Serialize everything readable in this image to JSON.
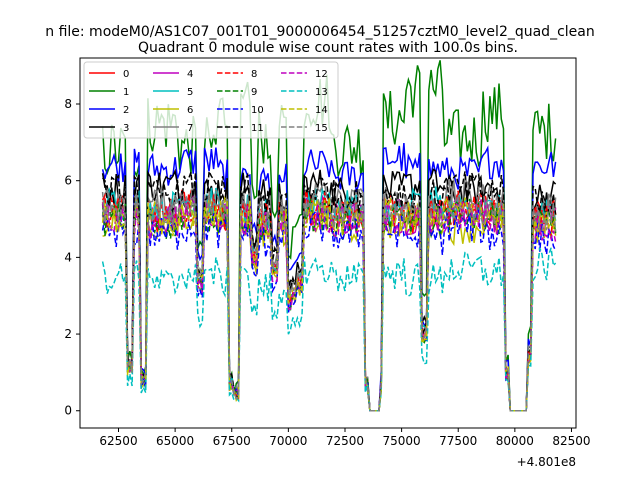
{
  "chart_data": {
    "type": "line",
    "suptitle": "n file: modeM0/AS1C07_001T01_9000006454_51257cztM0_level2_quad_clean",
    "title": "Quadrant 0 module wise count rates with 100.0s bins.",
    "xlabel": "",
    "ylabel": "",
    "x_offset_label": "+4.801e8",
    "xlim": [
      60800,
      82700
    ],
    "ylim": [
      -0.45,
      9.2
    ],
    "x_ticks": [
      62500,
      65000,
      67500,
      70000,
      72500,
      75000,
      77500,
      80000,
      82500
    ],
    "x_tick_labels": [
      "62500",
      "65000",
      "67500",
      "70000",
      "72500",
      "75000",
      "77500",
      "80000",
      "82500"
    ],
    "y_ticks": [
      0,
      2,
      4,
      6,
      8
    ],
    "y_tick_labels": [
      "0",
      "2",
      "4",
      "6",
      "8"
    ],
    "grid": false,
    "legend_position": "top-left",
    "x_start": 61800,
    "x_step": 100,
    "gaps": [
      [
        73600,
        74000
      ],
      [
        79800,
        80500
      ]
    ],
    "series": [
      {
        "name": "0",
        "color": "#ff0000",
        "dash": "solid",
        "values": [
          5.3,
          5.1,
          5.4,
          5.2,
          5.0,
          5.3,
          5.1,
          5.2,
          5.0,
          5.3,
          5.2,
          5.1
        ]
      },
      {
        "name": "1",
        "color": "#008000",
        "dash": "solid",
        "values": [
          6.8,
          7.5,
          6.9,
          7.8,
          7.2,
          8.1,
          6.9,
          7.6,
          8.4,
          7.1,
          7.8,
          7.3
        ]
      },
      {
        "name": "2",
        "color": "#0000ff",
        "dash": "solid",
        "values": [
          6.4,
          6.3,
          6.5,
          6.2,
          6.0,
          6.4,
          6.1,
          6.6,
          6.3,
          6.2,
          6.5,
          6.4
        ]
      },
      {
        "name": "3",
        "color": "#000000",
        "dash": "solid",
        "values": [
          5.8,
          5.9,
          5.7,
          5.8,
          5.6,
          5.9,
          5.7,
          5.8,
          5.9,
          5.7,
          5.8,
          5.6
        ]
      },
      {
        "name": "4",
        "color": "#bf00bf",
        "dash": "solid",
        "values": [
          5.1,
          5.0,
          5.2,
          5.1,
          4.9,
          5.2,
          5.0,
          5.1,
          5.0,
          5.2,
          5.1,
          5.0
        ]
      },
      {
        "name": "5",
        "color": "#00bfbf",
        "dash": "solid",
        "values": [
          5.4,
          5.3,
          5.5,
          5.2,
          5.1,
          5.4,
          5.3,
          5.2,
          5.4,
          5.3,
          5.2,
          5.1
        ]
      },
      {
        "name": "6",
        "color": "#bfbf00",
        "dash": "solid",
        "values": [
          5.0,
          4.8,
          5.1,
          4.9,
          4.7,
          5.0,
          4.8,
          4.9,
          5.0,
          4.8,
          4.9,
          4.7
        ]
      },
      {
        "name": "7",
        "color": "#808080",
        "dash": "solid",
        "values": [
          5.5,
          5.4,
          5.6,
          5.5,
          5.3,
          5.6,
          5.4,
          5.5,
          5.4,
          5.6,
          5.5,
          5.3
        ]
      },
      {
        "name": "8",
        "color": "#ff0000",
        "dash": "dashed",
        "values": [
          5.2,
          5.1,
          5.3,
          5.1,
          5.0,
          5.3,
          5.1,
          5.2,
          5.1,
          5.3,
          5.2,
          5.0
        ]
      },
      {
        "name": "9",
        "color": "#008000",
        "dash": "dashed",
        "values": [
          5.0,
          4.9,
          5.1,
          5.0,
          4.8,
          5.1,
          4.9,
          5.0,
          4.9,
          5.1,
          5.0,
          4.8
        ]
      },
      {
        "name": "10",
        "color": "#0000ff",
        "dash": "dashed",
        "values": [
          4.7,
          4.6,
          4.8,
          4.6,
          4.4,
          4.8,
          4.6,
          4.7,
          4.5,
          4.8,
          4.6,
          4.5
        ]
      },
      {
        "name": "11",
        "color": "#000000",
        "dash": "dashed",
        "values": [
          5.7,
          5.6,
          5.8,
          5.7,
          5.5,
          5.8,
          5.6,
          5.7,
          5.6,
          5.8,
          5.7,
          5.5
        ]
      },
      {
        "name": "12",
        "color": "#bf00bf",
        "dash": "dashed",
        "values": [
          5.0,
          4.9,
          5.1,
          5.0,
          4.8,
          5.1,
          4.9,
          5.0,
          4.9,
          5.1,
          5.0,
          4.8
        ]
      },
      {
        "name": "13",
        "color": "#00bfbf",
        "dash": "dashed",
        "values": [
          3.5,
          3.3,
          3.6,
          3.4,
          3.2,
          3.7,
          3.5,
          3.6,
          3.4,
          3.7,
          3.6,
          3.8
        ]
      },
      {
        "name": "14",
        "color": "#bfbf00",
        "dash": "dashed",
        "values": [
          5.1,
          5.0,
          5.2,
          5.1,
          4.9,
          5.2,
          5.0,
          5.1,
          5.0,
          5.2,
          5.1,
          4.9
        ]
      },
      {
        "name": "15",
        "color": "#808080",
        "dash": "dashed",
        "values": [
          5.3,
          5.2,
          5.4,
          5.3,
          5.1,
          5.4,
          5.2,
          5.3,
          5.2,
          5.4,
          5.3,
          5.1
        ]
      }
    ]
  }
}
